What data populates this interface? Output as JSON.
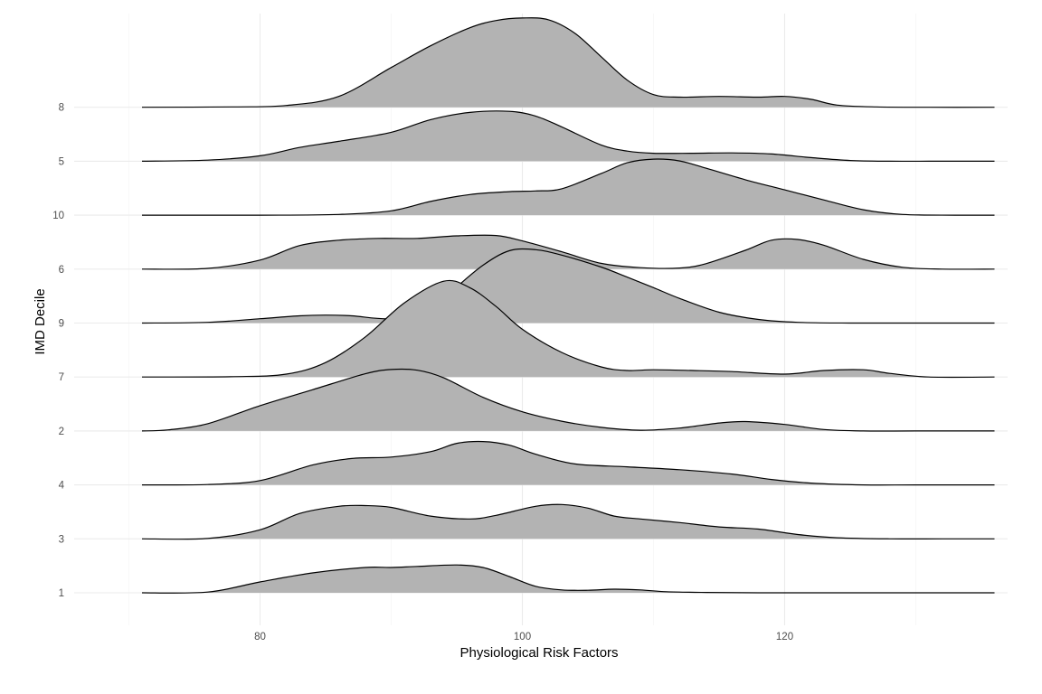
{
  "chart_data": {
    "type": "ridgeline",
    "xlabel": "Physiological Risk Factors",
    "ylabel": "IMD Decile",
    "x_ticks": [
      80,
      100,
      120
    ],
    "x_minor_ticks": [
      70,
      90,
      110,
      130
    ],
    "xlim": [
      65,
      137
    ],
    "x_range": [
      71,
      136
    ],
    "fill_color": "#b3b3b3",
    "line_color": "#000000",
    "series": [
      {
        "name": "1",
        "x": [
          71,
          76,
          80,
          84,
          88,
          90,
          92,
          95,
          97,
          99,
          101,
          103,
          105,
          107,
          109,
          111,
          114,
          118,
          124,
          130,
          136
        ],
        "density": [
          0,
          0.02,
          0.3,
          0.55,
          0.7,
          0.7,
          0.73,
          0.77,
          0.7,
          0.45,
          0.18,
          0.08,
          0.07,
          0.1,
          0.08,
          0.03,
          0.01,
          0,
          0,
          0,
          0
        ]
      },
      {
        "name": "3",
        "x": [
          71,
          76,
          80,
          83,
          86,
          88,
          90,
          93,
          96,
          98,
          101,
          103,
          105,
          107,
          109,
          112,
          115,
          118,
          121,
          124,
          128,
          132,
          136
        ],
        "density": [
          0,
          0.01,
          0.25,
          0.7,
          0.9,
          0.92,
          0.87,
          0.63,
          0.55,
          0.65,
          0.9,
          0.95,
          0.85,
          0.63,
          0.55,
          0.45,
          0.33,
          0.27,
          0.12,
          0.03,
          0,
          0,
          0
        ]
      },
      {
        "name": "4",
        "x": [
          71,
          76,
          80,
          84,
          87,
          90,
          93,
          95,
          97,
          99,
          101,
          104,
          108,
          112,
          116,
          119,
          122,
          126,
          130,
          136
        ],
        "density": [
          0,
          0.01,
          0.12,
          0.55,
          0.73,
          0.77,
          0.92,
          1.15,
          1.2,
          1.1,
          0.85,
          0.58,
          0.5,
          0.42,
          0.3,
          0.15,
          0.05,
          0,
          0,
          0
        ]
      },
      {
        "name": "2",
        "x": [
          71,
          73,
          76,
          80,
          84,
          88,
          90,
          92,
          94,
          97,
          100,
          103,
          106,
          109,
          112,
          115,
          117,
          120,
          123,
          126,
          130,
          136
        ],
        "density": [
          0,
          0.03,
          0.2,
          0.7,
          1.14,
          1.58,
          1.7,
          1.68,
          1.47,
          0.93,
          0.53,
          0.27,
          0.1,
          0.02,
          0.08,
          0.22,
          0.26,
          0.18,
          0.04,
          0,
          0,
          0
        ]
      },
      {
        "name": "7",
        "x": [
          71,
          78,
          82,
          85,
          88,
          91,
          94,
          96,
          98,
          100,
          103,
          106,
          108,
          110,
          113,
          116,
          120,
          123,
          126,
          128,
          131,
          136
        ],
        "density": [
          0,
          0.01,
          0.08,
          0.4,
          1.1,
          2.05,
          2.65,
          2.47,
          1.95,
          1.32,
          0.68,
          0.28,
          0.18,
          0.2,
          0.18,
          0.15,
          0.08,
          0.18,
          0.2,
          0.1,
          0,
          0
        ]
      },
      {
        "name": "9",
        "x": [
          71,
          76,
          80,
          83,
          85,
          87,
          90,
          93,
          95,
          97,
          99,
          101,
          103,
          106,
          108,
          110,
          112,
          115,
          118,
          121,
          125,
          130,
          136
        ],
        "density": [
          0,
          0.02,
          0.12,
          0.2,
          0.22,
          0.2,
          0.12,
          0.35,
          1,
          1.6,
          2,
          2.03,
          1.88,
          1.55,
          1.27,
          0.98,
          0.68,
          0.3,
          0.1,
          0.02,
          0,
          0,
          0
        ]
      },
      {
        "name": "6",
        "x": [
          71,
          76,
          80,
          83,
          86,
          89,
          92,
          95,
          98,
          100,
          103,
          106,
          109,
          112,
          114,
          117,
          119,
          121,
          123,
          126,
          129,
          132,
          136
        ],
        "density": [
          0,
          0.02,
          0.25,
          0.65,
          0.8,
          0.85,
          0.85,
          0.92,
          0.93,
          0.78,
          0.48,
          0.16,
          0.04,
          0.03,
          0.15,
          0.52,
          0.8,
          0.82,
          0.66,
          0.27,
          0.05,
          0,
          0
        ]
      },
      {
        "name": "10",
        "x": [
          71,
          80,
          86,
          90,
          93,
          96,
          99,
          101,
          103,
          106,
          108,
          110,
          112,
          114,
          117,
          120,
          123,
          126,
          129,
          133,
          136
        ],
        "density": [
          0,
          0,
          0.02,
          0.12,
          0.38,
          0.57,
          0.65,
          0.67,
          0.73,
          1.15,
          1.45,
          1.55,
          1.5,
          1.3,
          0.98,
          0.7,
          0.42,
          0.15,
          0.02,
          0,
          0
        ]
      },
      {
        "name": "5",
        "x": [
          71,
          76,
          80,
          83,
          86,
          90,
          93,
          96,
          99,
          101,
          103,
          106,
          108,
          110,
          113,
          116,
          119,
          122,
          125,
          128,
          131,
          136
        ],
        "density": [
          0,
          0.03,
          0.15,
          0.38,
          0.55,
          0.8,
          1.15,
          1.35,
          1.38,
          1.25,
          0.95,
          0.45,
          0.28,
          0.22,
          0.22,
          0.23,
          0.2,
          0.1,
          0.02,
          0,
          0,
          0
        ]
      },
      {
        "name": "8",
        "x": [
          71,
          78,
          82,
          86,
          90,
          93,
          96,
          98,
          100,
          102,
          104,
          106,
          108,
          110,
          112,
          115,
          118,
          120,
          122,
          124,
          127,
          131,
          136
        ],
        "density": [
          0,
          0.01,
          0.05,
          0.3,
          1.1,
          1.7,
          2.2,
          2.4,
          2.47,
          2.42,
          2.05,
          1.4,
          0.75,
          0.35,
          0.28,
          0.3,
          0.28,
          0.3,
          0.22,
          0.06,
          0.01,
          0,
          0
        ]
      }
    ]
  }
}
